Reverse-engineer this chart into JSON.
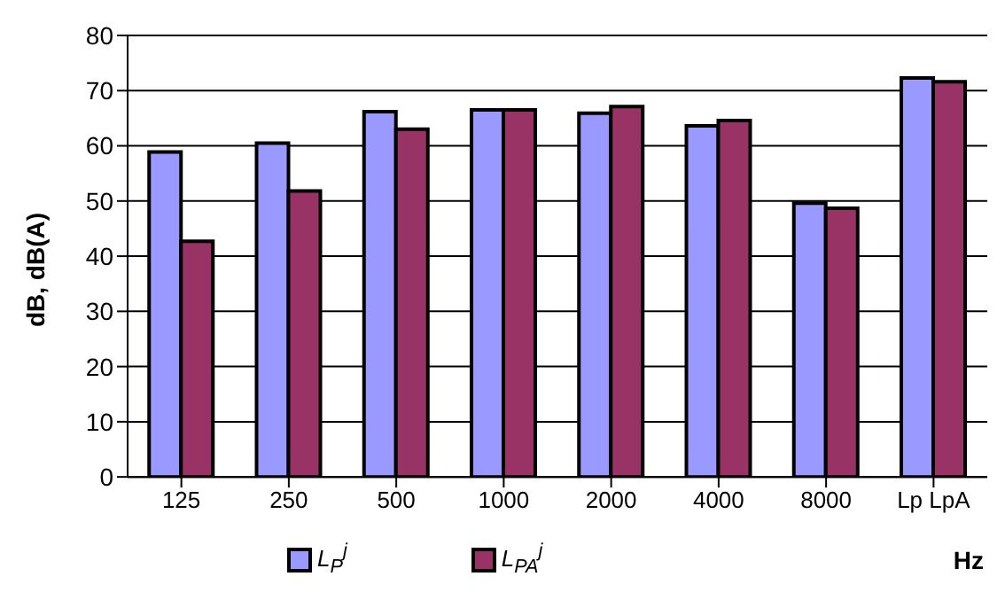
{
  "chart_data": {
    "type": "bar",
    "ylabel": "dB, dB(A)",
    "xlabel": "Hz",
    "categories": [
      "125",
      "250",
      "500",
      "1000",
      "2000",
      "4000",
      "8000",
      "Lp LpA"
    ],
    "series": [
      {
        "name": "L$_{P}$$^{j}$",
        "color": "#9999ff",
        "values": [
          58.9,
          60.5,
          66.2,
          66.5,
          65.9,
          63.6,
          49.6,
          72.3
        ]
      },
      {
        "name": "L$_{PA}$$^{j}$",
        "color": "#993366",
        "values": [
          42.7,
          51.8,
          63.0,
          66.5,
          67.1,
          64.6,
          48.7,
          71.6
        ]
      }
    ],
    "ylim": [
      0,
      80
    ],
    "yticks": [
      0,
      10,
      20,
      30,
      40,
      50,
      60,
      70,
      80
    ],
    "grid": "y",
    "legend": "bottom"
  }
}
